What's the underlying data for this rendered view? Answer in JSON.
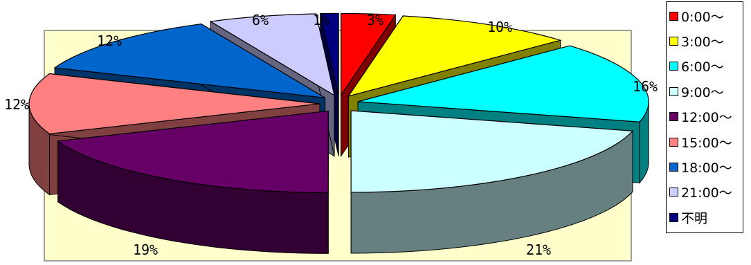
{
  "chart_data": {
    "type": "pie",
    "subtype": "3d-exploded",
    "categories": [
      "0:00～",
      "3:00～",
      "6:00～",
      "9:00～",
      "12:00～",
      "15:00～",
      "18:00～",
      "21:00～",
      "不明"
    ],
    "values": [
      3,
      10,
      16,
      21,
      19,
      12,
      12,
      6,
      1
    ],
    "value_labels": [
      "3%",
      "10%",
      "16%",
      "21%",
      "19%",
      "12%",
      "12%",
      "6%",
      "1%"
    ],
    "colors": [
      "#ff0000",
      "#ffff00",
      "#00ffff",
      "#ccffff",
      "#660066",
      "#ff8080",
      "#0066cc",
      "#ccccff",
      "#000080"
    ],
    "side_colors": [
      "#800000",
      "#808000",
      "#008080",
      "#668080",
      "#330033",
      "#804040",
      "#003366",
      "#666680",
      "#000040"
    ],
    "plot_background": "#ffffcc",
    "legend_position": "right"
  }
}
